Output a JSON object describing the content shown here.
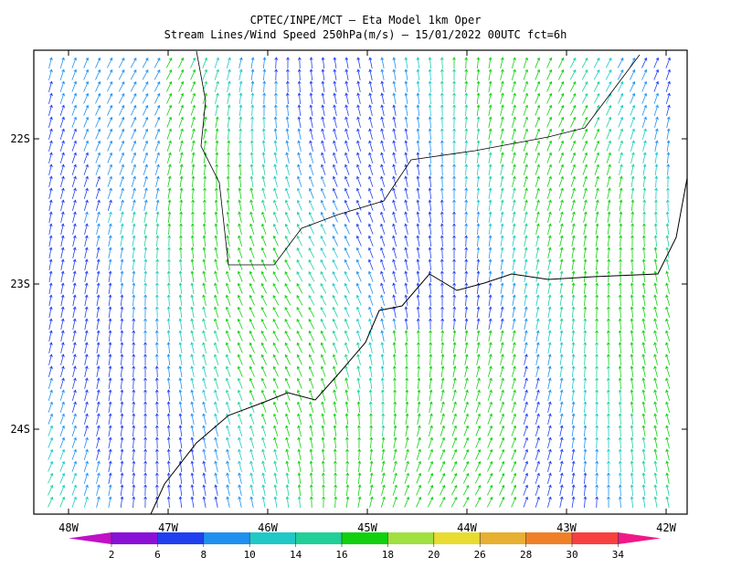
{
  "map": {
    "title": "CPTEC/INPE/MCT —  Eta Model 1km Oper",
    "subtitle": "Stream Lines/Wind Speed 250hPa(m/s) – 15/01/2022 00UTC fct=6h",
    "lon_labels": [
      "48W",
      "47W",
      "46W",
      "45W",
      "44W",
      "43W",
      "42W"
    ],
    "lat_labels": [
      "22S",
      "23S",
      "24S"
    ],
    "colorbar": {
      "labels": [
        2,
        6,
        8,
        10,
        14,
        16,
        18,
        20,
        26,
        28,
        30,
        34
      ],
      "colors": [
        "#c010c8",
        "#8a10d8",
        "#2040f0",
        "#2090f0",
        "#20c8c8",
        "#20d098",
        "#10d010",
        "#a0e040",
        "#e8dc30",
        "#e8b030",
        "#f08028",
        "#f84040",
        "#f01888"
      ]
    }
  }
}
